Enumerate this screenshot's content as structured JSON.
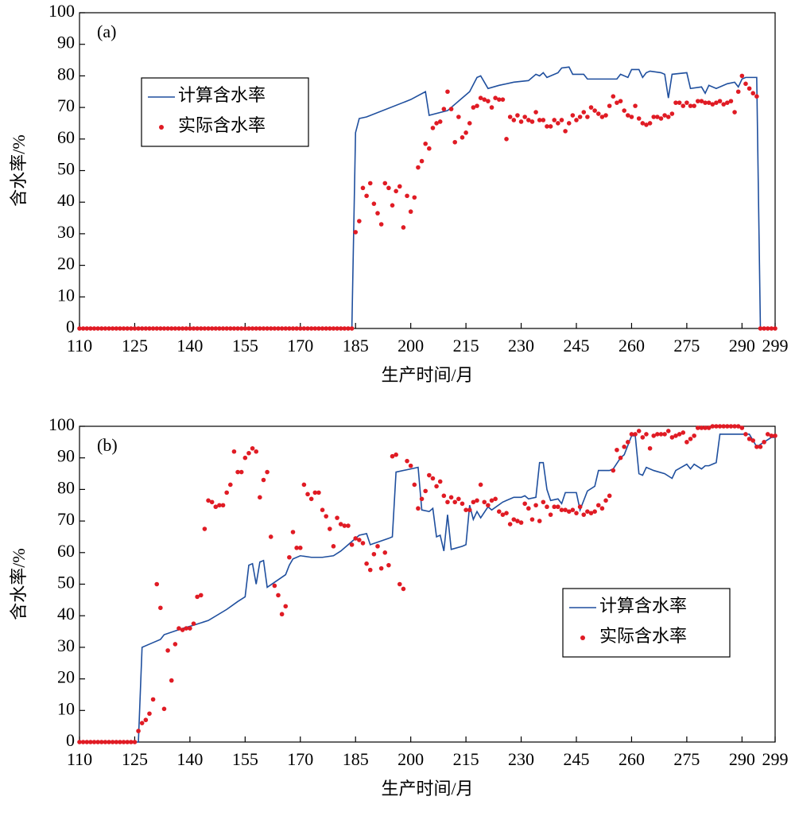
{
  "chart_data": [
    {
      "type": "line",
      "title": "(a)",
      "xlabel": "生产时间/月",
      "ylabel": "含水率/%",
      "xlim": [
        110,
        299
      ],
      "ylim": [
        0,
        100
      ],
      "xticks": [
        110,
        125,
        140,
        155,
        170,
        185,
        200,
        215,
        230,
        245,
        260,
        275,
        290,
        299
      ],
      "yticks": [
        0,
        10,
        20,
        30,
        40,
        50,
        60,
        70,
        80,
        90,
        100
      ],
      "legend": "upper left",
      "series": [
        {
          "name": "计算含水率",
          "type": "line",
          "color": "#1f4f9e",
          "x": [
            110,
            184,
            185,
            186,
            188,
            200,
            204,
            205,
            210,
            213,
            216,
            218,
            219,
            220,
            221,
            224,
            228,
            232,
            234,
            235,
            236,
            237,
            240,
            241,
            243,
            244,
            247,
            248,
            252,
            256,
            257,
            259,
            260,
            262,
            263,
            264,
            265,
            268,
            269,
            270,
            271,
            275,
            276,
            279,
            280,
            281,
            283,
            286,
            288,
            289,
            290,
            291,
            294,
            295,
            299
          ],
          "values": [
            0,
            0,
            62,
            66.5,
            67,
            72.5,
            75,
            67.5,
            69,
            72,
            75,
            79.5,
            80,
            78,
            76,
            77,
            78,
            78.5,
            80.5,
            80,
            81,
            79.5,
            81,
            82.5,
            82.8,
            80.5,
            80.5,
            79,
            79,
            79,
            80.5,
            79.5,
            82,
            82,
            79.5,
            81,
            81.5,
            81,
            80.5,
            73,
            80.5,
            81,
            76,
            76.5,
            74.5,
            77,
            76,
            77.5,
            78,
            76.5,
            79,
            79.5,
            79.5,
            0,
            0
          ]
        },
        {
          "name": "实际含水率",
          "type": "scatter",
          "color": "#e01b24",
          "x": [
            110,
            111,
            112,
            113,
            114,
            115,
            116,
            117,
            118,
            119,
            120,
            121,
            122,
            123,
            124,
            125,
            126,
            127,
            128,
            129,
            130,
            131,
            132,
            133,
            134,
            135,
            136,
            137,
            138,
            139,
            140,
            141,
            142,
            143,
            144,
            145,
            146,
            147,
            148,
            149,
            150,
            151,
            152,
            153,
            154,
            155,
            156,
            157,
            158,
            159,
            160,
            161,
            162,
            163,
            164,
            165,
            166,
            167,
            168,
            169,
            170,
            171,
            172,
            173,
            174,
            175,
            176,
            177,
            178,
            179,
            180,
            181,
            182,
            183,
            184,
            185,
            186,
            187,
            188,
            189,
            190,
            191,
            192,
            193,
            194,
            195,
            196,
            197,
            198,
            199,
            200,
            201,
            202,
            203,
            204,
            205,
            206,
            207,
            208,
            209,
            210,
            211,
            212,
            213,
            214,
            215,
            216,
            217,
            218,
            219,
            220,
            221,
            222,
            223,
            224,
            225,
            226,
            227,
            228,
            229,
            230,
            231,
            232,
            233,
            234,
            235,
            236,
            237,
            238,
            239,
            240,
            241,
            242,
            243,
            244,
            245,
            246,
            247,
            248,
            249,
            250,
            251,
            252,
            253,
            254,
            255,
            256,
            257,
            258,
            259,
            260,
            261,
            262,
            263,
            264,
            265,
            266,
            267,
            268,
            269,
            270,
            271,
            272,
            273,
            274,
            275,
            276,
            277,
            278,
            279,
            280,
            281,
            282,
            283,
            284,
            285,
            286,
            287,
            288,
            289,
            290,
            291,
            292,
            293,
            294,
            295,
            296,
            297,
            298,
            299
          ],
          "values": [
            0,
            0,
            0,
            0,
            0,
            0,
            0,
            0,
            0,
            0,
            0,
            0,
            0,
            0,
            0,
            0,
            0,
            0,
            0,
            0,
            0,
            0,
            0,
            0,
            0,
            0,
            0,
            0,
            0,
            0,
            0,
            0,
            0,
            0,
            0,
            0,
            0,
            0,
            0,
            0,
            0,
            0,
            0,
            0,
            0,
            0,
            0,
            0,
            0,
            0,
            0,
            0,
            0,
            0,
            0,
            0,
            0,
            0,
            0,
            0,
            0,
            0,
            0,
            0,
            0,
            0,
            0,
            0,
            0,
            0,
            0,
            0,
            0,
            0,
            0,
            30.5,
            34,
            44.5,
            42,
            46,
            39.5,
            36.5,
            33,
            46,
            44.5,
            39,
            43.5,
            45,
            32,
            42,
            37,
            41.5,
            51,
            53,
            58.5,
            57,
            63.5,
            65,
            65.5,
            69.5,
            75,
            69.5,
            59,
            67,
            60.5,
            62,
            65,
            70,
            70.5,
            73,
            72.5,
            72,
            70,
            73,
            72.5,
            72.5,
            60,
            67,
            66,
            67.5,
            65.5,
            67,
            66,
            65.5,
            68.5,
            66,
            66,
            64,
            64,
            66,
            65,
            66,
            62.5,
            65,
            67.5,
            66,
            67,
            68.5,
            67,
            70,
            69,
            68,
            67,
            67.5,
            70.5,
            73.5,
            71.5,
            72,
            69,
            67.5,
            67,
            70.5,
            66.5,
            65,
            64.5,
            65,
            67,
            67,
            66.5,
            67.5,
            67,
            68,
            71.5,
            71.5,
            70.5,
            71.5,
            70.5,
            70.5,
            72,
            72,
            71.5,
            71.5,
            71,
            71.5,
            72,
            71,
            71.5,
            72,
            68.5,
            75,
            80,
            77.5,
            76,
            74.5,
            73.5,
            0,
            0,
            0,
            0,
            0
          ]
        }
      ]
    },
    {
      "type": "line",
      "title": "(b)",
      "xlabel": "生产时间/月",
      "ylabel": "含水率/%",
      "xlim": [
        110,
        299
      ],
      "ylim": [
        0,
        100
      ],
      "xticks": [
        110,
        125,
        140,
        155,
        170,
        185,
        200,
        215,
        230,
        245,
        260,
        275,
        290,
        299
      ],
      "yticks": [
        0,
        10,
        20,
        30,
        40,
        50,
        60,
        70,
        80,
        90,
        100
      ],
      "legend": "lower right",
      "series": [
        {
          "name": "计算含水率",
          "type": "line",
          "color": "#1f4f9e",
          "x": [
            110,
            126,
            127,
            130,
            132,
            133,
            138,
            141,
            145,
            150,
            153,
            155,
            156,
            157,
            158,
            159,
            160,
            161,
            166,
            167,
            168,
            170,
            173,
            176,
            179,
            181,
            184,
            186,
            188,
            189,
            194,
            195,
            196,
            200,
            202,
            203,
            205,
            206,
            207,
            208,
            209,
            210,
            211,
            214,
            215,
            216,
            217,
            218,
            219,
            221,
            222,
            225,
            228,
            230,
            231,
            232,
            234,
            235,
            236,
            237,
            238,
            240,
            241,
            242,
            244,
            245,
            246,
            248,
            250,
            251,
            254,
            255,
            257,
            258,
            260,
            261,
            262,
            263,
            264,
            266,
            269,
            271,
            272,
            275,
            276,
            277,
            279,
            280,
            281,
            282,
            283,
            284,
            287,
            290,
            292,
            294,
            296,
            298,
            299
          ],
          "values": [
            0,
            0,
            30,
            31.5,
            32.5,
            34,
            36,
            37,
            38.5,
            42,
            44.5,
            46,
            56,
            56.5,
            50,
            57,
            57.5,
            49,
            53,
            56,
            58,
            59,
            58.5,
            58.5,
            59,
            60.5,
            63.5,
            65.5,
            66,
            62.5,
            64.5,
            65,
            85.5,
            86.5,
            87,
            73.5,
            73,
            74,
            65,
            65.5,
            60.5,
            72,
            61,
            62,
            62.5,
            75,
            70.5,
            73,
            71,
            74.5,
            73.5,
            76,
            77.5,
            77.5,
            78,
            77,
            77.5,
            88.5,
            88.5,
            80,
            76.5,
            77,
            75.5,
            79,
            79,
            79,
            73.5,
            79.5,
            81,
            86,
            86,
            86.5,
            90,
            91,
            97,
            97,
            85,
            84.5,
            87,
            86,
            85,
            83.5,
            86,
            88,
            86.5,
            88,
            86.5,
            87.5,
            87.5,
            88,
            88.5,
            97.5,
            97.5,
            97.5,
            97.5,
            93.5,
            95,
            96.5,
            96.5
          ]
        },
        {
          "name": "实际含水率",
          "type": "scatter",
          "color": "#e01b24",
          "x": [
            110,
            111,
            112,
            113,
            114,
            115,
            116,
            117,
            118,
            119,
            120,
            121,
            122,
            123,
            124,
            125,
            126,
            127,
            128,
            129,
            130,
            131,
            132,
            133,
            134,
            135,
            136,
            137,
            138,
            139,
            140,
            141,
            142,
            143,
            144,
            145,
            146,
            147,
            148,
            149,
            150,
            151,
            152,
            153,
            154,
            155,
            156,
            157,
            158,
            159,
            160,
            161,
            162,
            163,
            164,
            165,
            166,
            167,
            168,
            169,
            170,
            171,
            172,
            173,
            174,
            175,
            176,
            177,
            178,
            179,
            180,
            181,
            182,
            183,
            184,
            185,
            186,
            187,
            188,
            189,
            190,
            191,
            192,
            193,
            194,
            195,
            196,
            197,
            198,
            199,
            200,
            201,
            202,
            203,
            204,
            205,
            206,
            207,
            208,
            209,
            210,
            211,
            212,
            213,
            214,
            215,
            216,
            217,
            218,
            219,
            220,
            221,
            222,
            223,
            224,
            225,
            226,
            227,
            228,
            229,
            230,
            231,
            232,
            233,
            234,
            235,
            236,
            237,
            238,
            239,
            240,
            241,
            242,
            243,
            244,
            245,
            246,
            247,
            248,
            249,
            250,
            251,
            252,
            253,
            254,
            255,
            256,
            257,
            258,
            259,
            260,
            261,
            262,
            263,
            264,
            265,
            266,
            267,
            268,
            269,
            270,
            271,
            272,
            273,
            274,
            275,
            276,
            277,
            278,
            279,
            280,
            281,
            282,
            283,
            284,
            285,
            286,
            287,
            288,
            289,
            290,
            291,
            292,
            293,
            294,
            295,
            296,
            297,
            298,
            299
          ],
          "values": [
            0,
            0,
            0,
            0,
            0,
            0,
            0,
            0,
            0,
            0,
            0,
            0,
            0,
            0,
            0,
            0,
            3.5,
            6,
            7,
            9,
            13.5,
            50,
            42.5,
            10.5,
            29,
            19.5,
            31,
            36,
            35.5,
            36,
            36,
            37.5,
            46,
            46.5,
            67.5,
            76.5,
            76,
            74.5,
            75,
            75,
            79,
            81.5,
            92,
            85.5,
            85.5,
            90,
            91.5,
            93,
            92,
            77.5,
            83,
            85.5,
            65,
            49.5,
            46.5,
            40.5,
            43,
            58.5,
            66.5,
            61.5,
            61.5,
            81.5,
            78.5,
            77,
            79,
            79,
            73.5,
            71.5,
            67.5,
            62,
            71,
            69,
            68.5,
            68.5,
            62.5,
            64.5,
            64,
            63,
            56.5,
            54.5,
            59.5,
            62,
            55,
            60,
            56,
            90.5,
            91,
            50,
            48.5,
            89,
            87.5,
            81.5,
            74,
            77,
            79.5,
            84.5,
            83.5,
            81,
            82.5,
            78,
            76,
            77.5,
            76,
            77,
            75.5,
            73.5,
            73.5,
            76,
            76.5,
            81.5,
            76,
            75,
            76.5,
            77,
            73,
            72,
            72.5,
            69,
            70.5,
            70,
            69.5,
            75.5,
            74,
            70.5,
            75,
            70,
            76,
            74.5,
            72,
            74.5,
            74.5,
            73.5,
            73.5,
            73,
            73.5,
            72.5,
            74.5,
            72,
            73,
            72.5,
            73,
            75,
            74,
            76.5,
            78,
            86,
            92.5,
            90,
            93.5,
            95,
            97.5,
            97.5,
            98.5,
            96.5,
            97.5,
            93,
            97,
            97.5,
            97.5,
            97.5,
            98.5,
            96.5,
            97,
            97.5,
            98,
            95,
            96,
            97,
            99.5,
            99.5,
            99.5,
            99.5,
            100,
            100,
            100,
            100,
            100,
            100,
            100,
            100,
            99.5,
            97.5,
            96,
            95.5,
            93.5,
            93.5,
            95,
            97.5,
            97,
            97
          ]
        }
      ]
    }
  ]
}
